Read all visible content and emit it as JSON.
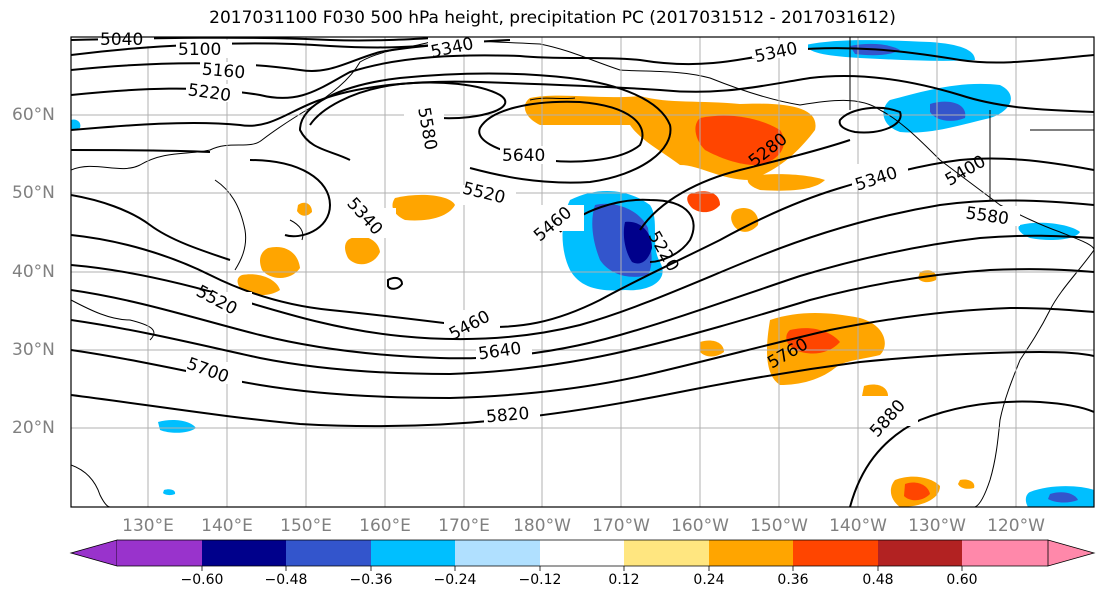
{
  "title": "2017031100 F030 500 hPa height, precipitation PC (2017031512 - 2017031612)",
  "lat_labels": [
    "60°N",
    "50°N",
    "40°N",
    "30°N",
    "20°N"
  ],
  "lon_labels": [
    "130°E",
    "140°E",
    "150°E",
    "160°E",
    "170°E",
    "180°W",
    "170°W",
    "160°W",
    "150°W",
    "140°W",
    "130°W",
    "120°W"
  ],
  "contour_labels": [
    "5040",
    "5100",
    "5160",
    "5220",
    "5340",
    "5340",
    "5580",
    "5640",
    "5520",
    "5460",
    "5340",
    "5220",
    "5280",
    "5340",
    "5400",
    "5580",
    "5520",
    "5460",
    "5640",
    "5700",
    "5760",
    "5820",
    "5880"
  ],
  "colorbar": {
    "ticks": [
      "−0.60",
      "−0.48",
      "−0.36",
      "−0.24",
      "−0.12",
      "0.12",
      "0.24",
      "0.36",
      "0.48",
      "0.60"
    ],
    "colors": [
      "#9933cc",
      "#00008b",
      "#3355cc",
      "#00bfff",
      "#b0e0ff",
      "#ffffff",
      "#ffe680",
      "#ffa500",
      "#ff4500",
      "#b22222",
      "#ff88aa"
    ]
  },
  "colors": {
    "land_outline": "#000000",
    "grid": "#b0b0b0",
    "contour": "#000000"
  }
}
